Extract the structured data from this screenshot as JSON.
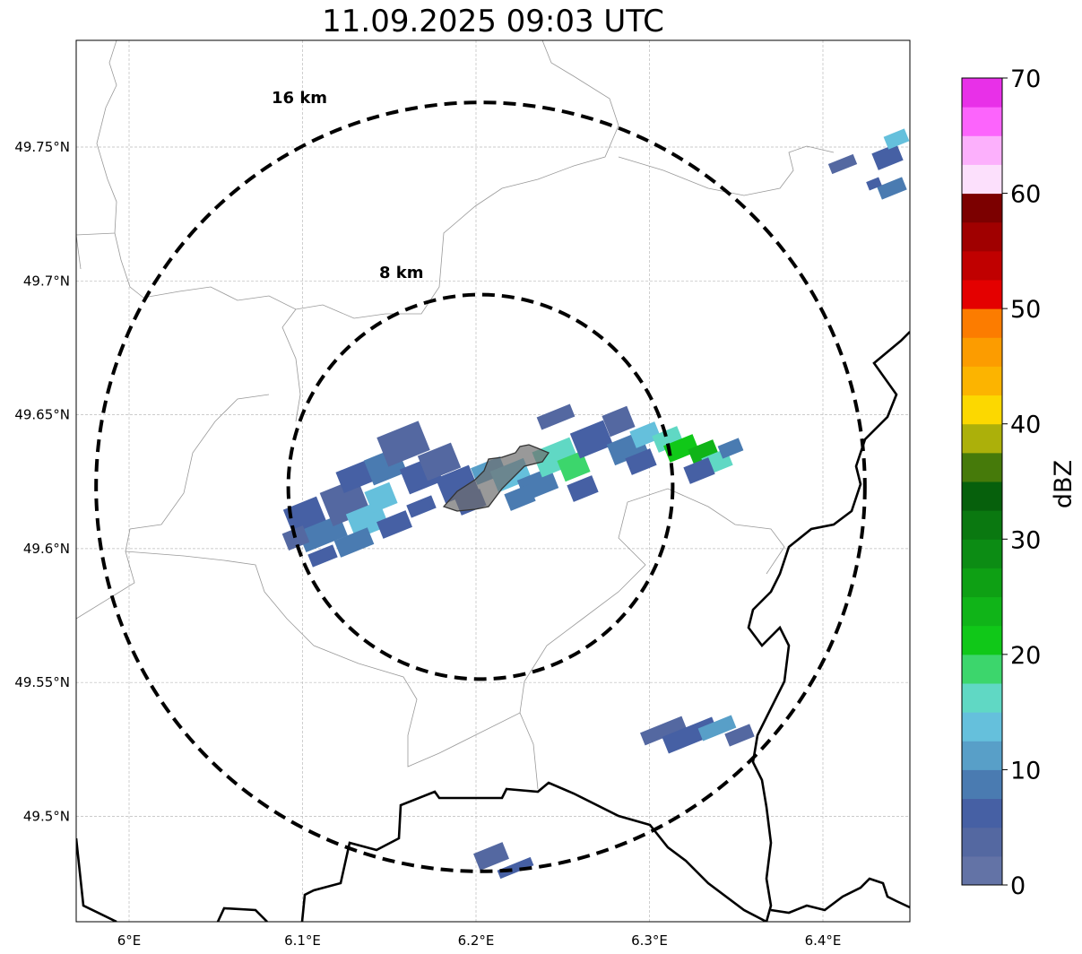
{
  "title": "11.09.2025 09:03 UTC",
  "map": {
    "lat_ticks": [
      {
        "value": 49.75,
        "label": "49.75°N"
      },
      {
        "value": 49.7,
        "label": "49.7°N"
      },
      {
        "value": 49.65,
        "label": "49.65°N"
      },
      {
        "value": 49.6,
        "label": "49.6°N"
      },
      {
        "value": 49.55,
        "label": "49.55°N"
      },
      {
        "value": 49.5,
        "label": "49.5°N"
      }
    ],
    "lon_ticks": [
      {
        "value": 6.0,
        "label": "6°E"
      },
      {
        "value": 6.1,
        "label": "6.1°E"
      },
      {
        "value": 6.2,
        "label": "6.2°E"
      },
      {
        "value": 6.3,
        "label": "6.3°E"
      },
      {
        "value": 6.4,
        "label": "6.4°E"
      }
    ],
    "range_rings": [
      {
        "radius_km": 16,
        "label": "16 km"
      },
      {
        "radius_km": 8,
        "label": "8 km"
      }
    ],
    "center": {
      "lat": 49.623,
      "lon": 6.203
    }
  },
  "colorbar": {
    "label": "dBZ",
    "min": 0,
    "max": 70,
    "step": 2.5,
    "ticks": [
      {
        "value": 0,
        "label": "0"
      },
      {
        "value": 10,
        "label": "10"
      },
      {
        "value": 20,
        "label": "20"
      },
      {
        "value": 30,
        "label": "30"
      },
      {
        "value": 40,
        "label": "40"
      },
      {
        "value": 50,
        "label": "50"
      },
      {
        "value": 60,
        "label": "60"
      },
      {
        "value": 70,
        "label": "70"
      }
    ],
    "colors": [
      "#6373a6",
      "#5468a1",
      "#4660a4",
      "#4a7bb1",
      "#589fc8",
      "#65c0dc",
      "#60d8c4",
      "#3cd66c",
      "#10c818",
      "#10b418",
      "#0ea014",
      "#0c8c14",
      "#0a7810",
      "#06600c",
      "#467a0a",
      "#acb00a",
      "#fcd800",
      "#fcb400",
      "#fc9c00",
      "#fc7c00",
      "#e40000",
      "#c00000",
      "#a00000",
      "#7c0000",
      "#fce0fc",
      "#fcb0fc",
      "#fc64fc",
      "#e830e8"
    ]
  }
}
